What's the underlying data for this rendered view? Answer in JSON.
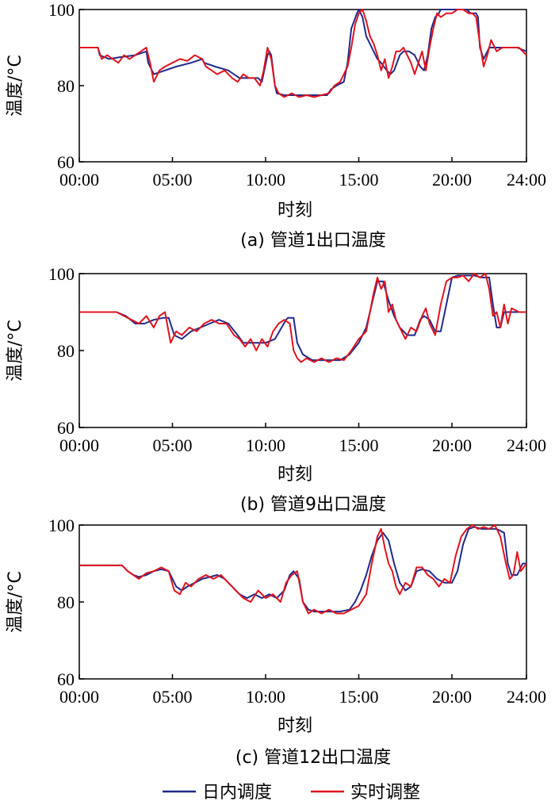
{
  "colors": {
    "day_ahead": "#1f2a8a",
    "realtime": "#e0141e"
  },
  "legend": [
    {
      "name": "日内调度",
      "color": "#1f2a8a"
    },
    {
      "name": "实时调整",
      "color": "#e0141e"
    }
  ],
  "chart_data": [
    {
      "type": "line",
      "caption": "(a)  管道1出口温度",
      "xlabel": "时刻",
      "ylabel": "温度/°C",
      "x_ticks": [
        "00:00",
        "05:00",
        "10:00",
        "15:00",
        "20:00",
        "24:00"
      ],
      "y_ticks": [
        60,
        80,
        100
      ],
      "xlim": [
        0,
        24
      ],
      "ylim": [
        60,
        100
      ],
      "series": [
        {
          "name": "日内调度",
          "color": "#1f2a8a",
          "x": [
            0,
            1,
            1.1,
            1.6,
            2.2,
            3,
            3.6,
            3.7,
            4.0,
            4.6,
            5.2,
            6.0,
            6.6,
            6.7,
            7.3,
            8,
            8.6,
            9,
            9.6,
            9.8,
            10.1,
            10.2,
            10.3,
            10.5,
            10.6,
            11,
            12,
            13,
            13.3,
            13.5,
            13.8,
            14.2,
            14.4,
            14.6,
            14.9,
            15,
            15.2,
            15.4,
            15.7,
            16,
            16.2,
            16.5,
            16.7,
            16.9,
            17.2,
            17.4,
            17.7,
            18,
            18.3,
            18.5,
            18.7,
            18.9,
            19.1,
            19.3,
            19.4,
            20,
            20.5,
            20.8,
            21,
            21.3,
            21.4,
            21.5,
            21.7,
            22,
            22.5,
            23,
            23.5,
            24
          ],
          "y": [
            90,
            90,
            88,
            87,
            87.5,
            88,
            89,
            86,
            83,
            84,
            85,
            86,
            87,
            86,
            85,
            84,
            82,
            82,
            82,
            81,
            88,
            89,
            88,
            80,
            78,
            77.5,
            77.5,
            77.5,
            77.5,
            79,
            80,
            81,
            86,
            95,
            99,
            100,
            98,
            93,
            90,
            87,
            86,
            84,
            83,
            84,
            88,
            89,
            89,
            88,
            85,
            84,
            88,
            95,
            98,
            99,
            100,
            100,
            100,
            100,
            99,
            99,
            98,
            90,
            87,
            90,
            90,
            90,
            90,
            89
          ]
        },
        {
          "name": "实时调整",
          "color": "#e0141e",
          "x": [
            0,
            1,
            1.2,
            1.5,
            1.8,
            2.1,
            2.4,
            2.7,
            3,
            3.3,
            3.6,
            3.8,
            4.0,
            4.3,
            4.6,
            5,
            5.4,
            5.8,
            6.2,
            6.6,
            6.8,
            7.1,
            7.4,
            7.8,
            8.2,
            8.5,
            8.8,
            9.1,
            9.4,
            9.7,
            9.9,
            10.1,
            10.3,
            10.5,
            10.7,
            11,
            11.4,
            11.8,
            12.2,
            12.6,
            13,
            13.4,
            13.7,
            14,
            14.2,
            14.4,
            14.6,
            14.8,
            15,
            15.2,
            15.4,
            15.6,
            15.8,
            16,
            16.2,
            16.4,
            16.6,
            16.8,
            17,
            17.2,
            17.4,
            17.6,
            17.8,
            18,
            18.2,
            18.4,
            18.6,
            18.8,
            19,
            19.2,
            19.4,
            19.7,
            20,
            20.3,
            20.6,
            20.9,
            21.1,
            21.3,
            21.5,
            21.7,
            21.9,
            22.1,
            22.4,
            22.7,
            23,
            23.3,
            23.6,
            24
          ],
          "y": [
            90,
            90,
            87,
            88,
            87,
            86,
            88,
            87,
            88,
            89,
            90,
            86,
            81,
            84,
            85,
            86,
            87,
            86.5,
            88,
            87,
            85,
            84,
            83,
            84,
            82,
            81,
            83,
            82,
            82,
            80,
            84,
            90,
            87,
            80,
            78,
            77,
            78,
            77,
            77.5,
            77,
            77.5,
            78,
            80,
            81,
            83,
            85,
            90,
            96,
            99,
            100,
            97,
            93,
            91,
            88,
            84,
            87,
            82,
            85,
            89,
            89,
            90,
            88,
            86,
            83,
            86,
            89,
            84,
            90,
            95,
            99,
            98,
            99,
            99,
            100,
            100,
            99,
            99,
            98,
            91,
            85,
            88,
            92,
            89,
            90,
            90,
            90,
            90,
            88
          ]
        }
      ]
    },
    {
      "type": "line",
      "caption": "(b)  管道9出口温度",
      "xlabel": "时刻",
      "ylabel": "温度/°C",
      "x_ticks": [
        "00:00",
        "05:00",
        "10:00",
        "15:00",
        "20:00",
        "24:00"
      ],
      "y_ticks": [
        60,
        80,
        100
      ],
      "xlim": [
        0,
        24
      ],
      "ylim": [
        60,
        100
      ],
      "series": [
        {
          "name": "日内调度",
          "color": "#1f2a8a",
          "x": [
            0,
            2,
            2.5,
            3,
            3.5,
            4,
            4.5,
            4.8,
            5.1,
            5.5,
            6,
            6.5,
            7,
            7.5,
            8,
            8.5,
            8.8,
            9.1,
            9.5,
            10,
            10.5,
            11.1,
            11.2,
            11.5,
            11.7,
            12,
            12.5,
            13,
            14,
            14.5,
            15,
            15.4,
            15.7,
            16,
            16.3,
            16.6,
            16.9,
            17.2,
            17.6,
            18,
            18.3,
            18.5,
            18.8,
            19.1,
            19.4,
            19.7,
            20,
            20.3,
            20.5,
            20.8,
            21.2,
            21.6,
            22,
            22.2,
            22.4,
            22.6,
            22.8,
            23.2,
            23.6,
            24
          ],
          "y": [
            90,
            90,
            89,
            87,
            87,
            88,
            88.5,
            88.5,
            84,
            83,
            85,
            86,
            87,
            88,
            87,
            84,
            82,
            82,
            82,
            82,
            83,
            88,
            88.5,
            88.5,
            82,
            79,
            77.5,
            77.5,
            77.5,
            79,
            82,
            86,
            92,
            98,
            98,
            93,
            89,
            86,
            84,
            84,
            88,
            89,
            88,
            85,
            85,
            92,
            99,
            99.5,
            99.5,
            99.5,
            99.5,
            99,
            99,
            92,
            86,
            86,
            90,
            90,
            90,
            90
          ]
        },
        {
          "name": "实时调整",
          "color": "#e0141e",
          "x": [
            0,
            2,
            2.4,
            2.8,
            3.2,
            3.6,
            4,
            4.3,
            4.6,
            4.9,
            5.2,
            5.5,
            5.9,
            6.3,
            6.7,
            7.1,
            7.5,
            7.9,
            8.3,
            8.6,
            8.9,
            9.2,
            9.5,
            9.8,
            10.1,
            10.4,
            10.7,
            11,
            11.3,
            11.5,
            11.7,
            11.9,
            12.2,
            12.6,
            13,
            13.4,
            13.8,
            14.2,
            14.6,
            15,
            15.4,
            15.8,
            16,
            16.2,
            16.4,
            16.6,
            16.8,
            17.0,
            17.2,
            17.5,
            17.8,
            18.1,
            18.4,
            18.6,
            18.8,
            19.1,
            19.4,
            19.7,
            20,
            20.3,
            20.6,
            20.9,
            21.2,
            21.5,
            21.8,
            22,
            22.2,
            22.4,
            22.6,
            22.8,
            23.0,
            23.2,
            23.6,
            24
          ],
          "y": [
            90,
            90,
            89,
            88,
            87,
            89,
            86,
            89,
            90,
            82,
            85,
            84,
            86,
            85,
            87,
            88,
            87,
            87,
            84,
            83,
            81,
            83,
            80,
            83,
            81,
            85,
            87,
            88,
            87,
            80,
            78,
            77,
            78,
            77,
            78,
            77,
            78,
            77.5,
            80,
            83,
            85,
            95,
            99,
            96,
            98,
            90,
            92,
            88,
            86,
            83,
            86,
            85,
            89,
            91,
            87,
            84,
            92,
            98,
            99,
            99,
            99.5,
            98,
            100,
            99,
            100,
            96,
            89,
            90,
            86,
            92,
            87,
            91,
            90,
            90
          ]
        }
      ]
    },
    {
      "type": "line",
      "caption": "(c)  管道12出口温度",
      "xlabel": "时刻",
      "ylabel": "温度/°C",
      "x_ticks": [
        "00:00",
        "05:00",
        "10:00",
        "15:00",
        "20:00",
        "24:00"
      ],
      "y_ticks": [
        60,
        80,
        100
      ],
      "xlim": [
        0,
        24
      ],
      "ylim": [
        60,
        100
      ],
      "series": [
        {
          "name": "日内调度",
          "color": "#1f2a8a",
          "x": [
            0,
            2.3,
            2.6,
            2.9,
            3.2,
            3.6,
            4.0,
            4.4,
            4.8,
            5.2,
            5.5,
            5.8,
            6.2,
            6.6,
            7.0,
            7.4,
            7.8,
            8.2,
            8.6,
            9.0,
            9.4,
            9.8,
            10.2,
            10.6,
            11,
            11.3,
            11.5,
            11.8,
            12,
            12.3,
            12.6,
            13,
            13.5,
            14,
            14.5,
            14.8,
            15.1,
            15.4,
            15.7,
            16,
            16.3,
            16.6,
            16.9,
            17.2,
            17.5,
            17.8,
            18.1,
            18.4,
            18.8,
            19.2,
            19.6,
            20,
            20.3,
            20.6,
            20.9,
            21.2,
            21.6,
            22,
            22.4,
            22.8,
            23.0,
            23.2,
            23.5,
            23.8,
            24
          ],
          "y": [
            89.5,
            89.5,
            88,
            87,
            86.5,
            87,
            88,
            88.5,
            88,
            84,
            83,
            84,
            85,
            86,
            86.5,
            87,
            86,
            84,
            82,
            81,
            82,
            81,
            82,
            81,
            83,
            87,
            88,
            86,
            80,
            78,
            77.5,
            77.5,
            77.5,
            77.5,
            78,
            80,
            83,
            87,
            92,
            96,
            98,
            96,
            90,
            85,
            83,
            84,
            88,
            88.5,
            88,
            86,
            85,
            85,
            88,
            95,
            99,
            99.5,
            99,
            99,
            99,
            98,
            90,
            87,
            87,
            90,
            90
          ]
        },
        {
          "name": "实时调整",
          "color": "#e0141e",
          "x": [
            0,
            2.3,
            2.6,
            2.9,
            3.2,
            3.6,
            4.0,
            4.4,
            4.8,
            5.1,
            5.4,
            5.7,
            6.0,
            6.4,
            6.8,
            7.2,
            7.6,
            8.0,
            8.4,
            8.8,
            9.2,
            9.6,
            10.0,
            10.4,
            10.8,
            11.1,
            11.4,
            11.7,
            12.0,
            12.3,
            12.6,
            13,
            13.4,
            13.8,
            14.2,
            14.6,
            15,
            15.4,
            15.7,
            16,
            16.2,
            16.4,
            16.6,
            16.8,
            17.0,
            17.2,
            17.5,
            17.8,
            18.1,
            18.4,
            18.7,
            19.0,
            19.3,
            19.6,
            19.9,
            20.2,
            20.5,
            20.8,
            21.1,
            21.4,
            21.7,
            22,
            22.3,
            22.6,
            22.9,
            23.1,
            23.3,
            23.5,
            23.7,
            24
          ],
          "y": [
            89.5,
            89.5,
            88,
            87,
            86,
            87.5,
            88,
            89,
            88,
            83,
            82,
            85,
            84,
            86,
            87,
            86,
            87,
            85,
            83,
            81,
            80,
            83,
            81,
            82,
            80,
            85,
            87,
            88,
            80,
            77,
            78,
            77,
            78,
            77,
            77,
            78,
            79,
            82,
            90,
            97,
            99,
            94,
            90,
            88,
            84,
            82,
            85,
            84,
            89,
            89,
            87,
            86,
            84,
            86,
            85,
            92,
            97,
            99,
            100,
            99,
            99.5,
            99,
            100,
            97,
            90,
            86,
            87,
            93,
            88,
            90
          ]
        }
      ]
    }
  ]
}
